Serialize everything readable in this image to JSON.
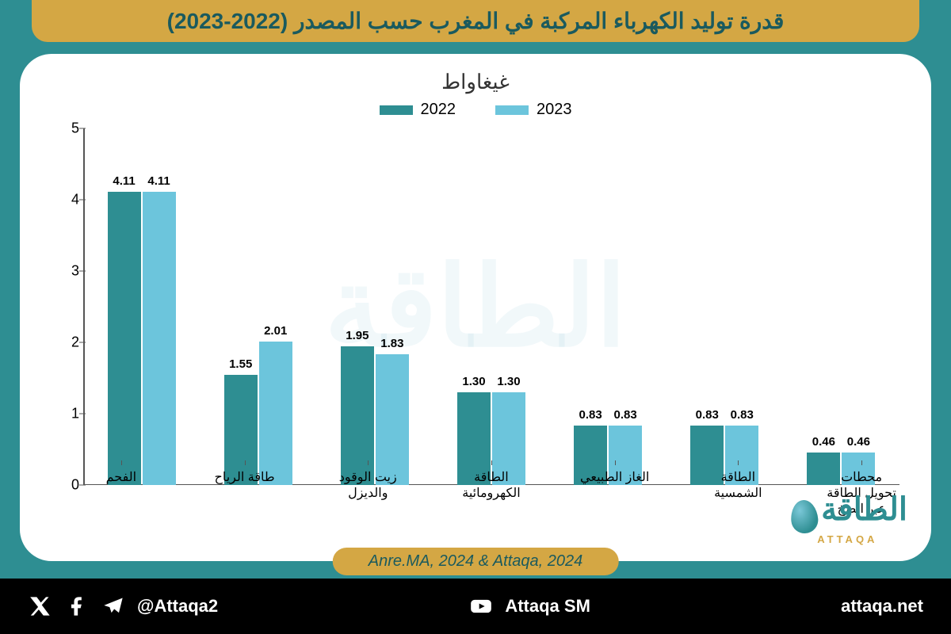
{
  "header": {
    "title": "قدرة توليد الكهرباء المركبة في المغرب حسب المصدر (2022-2023)"
  },
  "chart": {
    "type": "bar",
    "unit_label": "غيغاواط",
    "legend": [
      {
        "label": "2022",
        "color": "#2e8e92"
      },
      {
        "label": "2023",
        "color": "#6cc5dc"
      }
    ],
    "ylim": [
      0,
      5
    ],
    "yticks": [
      0,
      1,
      2,
      3,
      4,
      5
    ],
    "categories": [
      "الفحم",
      "طاقة الرياح",
      "زيت الوقود والديزل",
      "الطاقة الكهرومائية",
      "الغاز الطبيعي",
      "الطاقة الشمسية",
      "محطات تحويل الطاقة عبر الضخ"
    ],
    "series": {
      "2022": [
        4.11,
        1.55,
        1.95,
        1.3,
        0.83,
        0.83,
        0.46
      ],
      "2023": [
        4.11,
        2.01,
        1.83,
        1.3,
        0.83,
        0.83,
        0.46
      ]
    },
    "display_labels": {
      "2022": [
        "4.11",
        "1.55",
        "1.95",
        "1.30",
        "0.83",
        "0.83",
        "0.46"
      ],
      "2023": [
        "4.11",
        "2.01",
        "1.83",
        "1.30",
        "0.83",
        "0.83",
        "0.46"
      ]
    },
    "colors": {
      "s2022": "#2e8e92",
      "s2023": "#6cc5dc"
    },
    "background_color": "#ffffff",
    "frame_color": "#2e8e92",
    "label_fontsize": 15,
    "axis_fontsize": 18
  },
  "source": {
    "text": "Anre.MA, 2024 & Attaqa, 2024"
  },
  "brand": {
    "name_ar": "الطاقة",
    "name_en": "ATTAQA"
  },
  "footer": {
    "handle": "@Attaqa2",
    "youtube": "Attaqa SM",
    "site": "attaqa.net"
  },
  "watermark": "الطاقة"
}
